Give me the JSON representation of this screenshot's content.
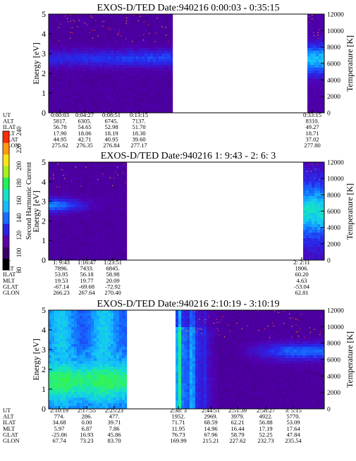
{
  "figure": {
    "energy_axis_label": "Energy [eV]",
    "temperature_axis_label": "Temperature [K]",
    "energy_ticks": [
      "0",
      "1",
      "2",
      "3",
      "4",
      "5"
    ],
    "temperature_ticks": [
      "0",
      "2000",
      "4000",
      "6000",
      "8000",
      "10000",
      "12000"
    ],
    "colorbar": {
      "label": "Second Harmonic Current",
      "ticks": [
        "80",
        "100",
        "120",
        "140",
        "160",
        "180",
        "200",
        "220",
        "240"
      ],
      "colors": [
        "#000000",
        "#3a0066",
        "#5a00a8",
        "#2a22e0",
        "#1a6cff",
        "#1ab8ff",
        "#14e0c8",
        "#22f25a",
        "#a6f01e",
        "#f6e41a",
        "#ff9a12",
        "#ff2a0a"
      ]
    },
    "orbit_row_labels": [
      "UT",
      "ALT",
      "ILAT",
      "MLT",
      "GLAT",
      "GLON"
    ]
  },
  "chart_data": [
    {
      "type": "heatmap",
      "title": "EXOS-D/TED   Date:940216  0:00:03 - 0:35:15",
      "ylabel": "Energy [eV]",
      "ylabel_right": "Temperature [K]",
      "ylim": [
        0,
        5
      ],
      "ylim_right": [
        0,
        12000
      ],
      "data_segments_ut": [
        [
          "0:00:03",
          "0:17:30"
        ],
        [
          "0:33:15",
          "0:35:15"
        ]
      ],
      "dominant_band_eV": 2.7,
      "orbit": {
        "UT": [
          "0:00:03",
          "0:04:27",
          "0:08:51",
          "0:13:15",
          "0:33:15"
        ],
        "ALT": [
          "5817.",
          "6305.",
          "6745.",
          "7137.",
          "8310."
        ],
        "ILAT": [
          "56.78",
          "54.65",
          "52.98",
          "51.70",
          "49.27"
        ],
        "MLT": [
          "17.90",
          "18.06",
          "18.19",
          "18.30",
          "18.71"
        ],
        "GLAT": [
          "44.95",
          "42.71",
          "40.95",
          "39.60",
          "37.02"
        ],
        "GLON": [
          "275.62",
          "276.35",
          "276.84",
          "277.17",
          "277.80"
        ]
      }
    },
    {
      "type": "heatmap",
      "title": "EXOS-D/TED   Date:940216  1: 9:43 - 2: 6: 3",
      "ylabel": "Energy [eV]",
      "ylabel_right": "Temperature [K]",
      "ylim": [
        0,
        5
      ],
      "ylim_right": [
        0,
        12000
      ],
      "data_segments_ut": [
        [
          "1: 9:43",
          "1:27:00"
        ],
        [
          "2: 0:30",
          "2: 6: 3"
        ]
      ],
      "dominant_band_eV": 2.8,
      "orbit": {
        "UT": [
          "1: 9:43",
          "1:16:47",
          "1:23:51",
          "2: 2:11"
        ],
        "ALT": [
          "7896.",
          "7433.",
          "6845.",
          "1806."
        ],
        "ILAT": [
          "53.95",
          "56.18",
          "58.98",
          "60.20"
        ],
        "MLT": [
          "19.53",
          "19.77",
          "20.09",
          "4.63"
        ],
        "GLAT": [
          "-67.14",
          "-69.68",
          "-72.92",
          "-53.04"
        ],
        "GLON": [
          "266.23",
          "267.64",
          "270.40",
          "62.81"
        ]
      }
    },
    {
      "type": "heatmap",
      "title": "EXOS-D/TED   Date:940216  2:10:19 - 3:10:19",
      "ylabel": "Energy [eV]",
      "ylabel_right": "Temperature [K]",
      "ylim": [
        0,
        5
      ],
      "ylim_right": [
        0,
        12000
      ],
      "data_segments_ut": [
        [
          "2:10:19",
          "2:27:30"
        ],
        [
          "2:37:30",
          "3:10:19"
        ]
      ],
      "dominant_band_eV": 2.9,
      "orbit": {
        "UT": [
          "2:10:19",
          "2:17:55",
          "2:25:23",
          "2:38: 3",
          "2:44:51",
          "2:51:39",
          "2:58:27",
          "3: 5:15"
        ],
        "ALT": [
          "774.",
          "286.",
          "477.",
          "1952.",
          "2969.",
          "3979.",
          "4922.",
          "5770."
        ],
        "ILAT": [
          "34.68",
          "0.00",
          "39.71",
          "71.71",
          "68.59",
          "62.21",
          "56.88",
          "53.09"
        ],
        "MLT": [
          "5.97",
          "6.87",
          "7.86",
          "11.95",
          "14.96",
          "16.44",
          "17.19",
          "17.64"
        ],
        "GLAT": [
          "-25.06",
          "16.93",
          "45.86",
          "76.73",
          "67.96",
          "58.79",
          "52.25",
          "47.84"
        ],
        "GLON": [
          "67.74",
          "73.23",
          "83.70",
          "169.99",
          "215.21",
          "227.62",
          "232.73",
          "235.54"
        ]
      }
    }
  ]
}
